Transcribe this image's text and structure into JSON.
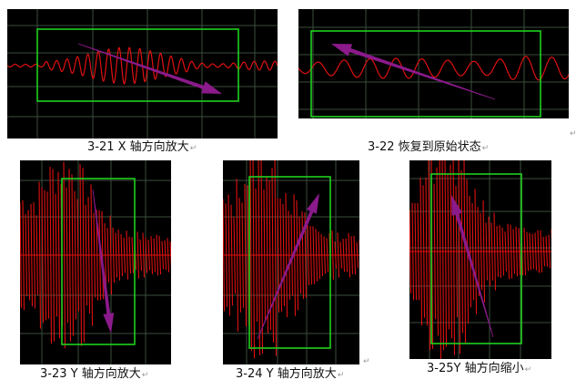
{
  "colors": {
    "background": "#000000",
    "grid": "#3b4e3b",
    "signal": "#e01010",
    "selection_box": "#1fd11f",
    "arrow": "#8b1a8b"
  },
  "figures": [
    {
      "id": "f1",
      "caption": "3-21 X 轴方向放大",
      "mark": "↵"
    },
    {
      "id": "f2",
      "caption": "3-22 恢复到原始状态",
      "mark": "↵"
    },
    {
      "id": "f3",
      "caption": "3-23 Y 轴方向放大",
      "mark": "↵"
    },
    {
      "id": "f4",
      "caption": "3-24 Y 轴方向放大",
      "mark": "↵"
    },
    {
      "id": "f5",
      "caption": "3-25Y 轴方向缩小",
      "mark": "↵"
    }
  ],
  "paragraph_mark": "↵"
}
